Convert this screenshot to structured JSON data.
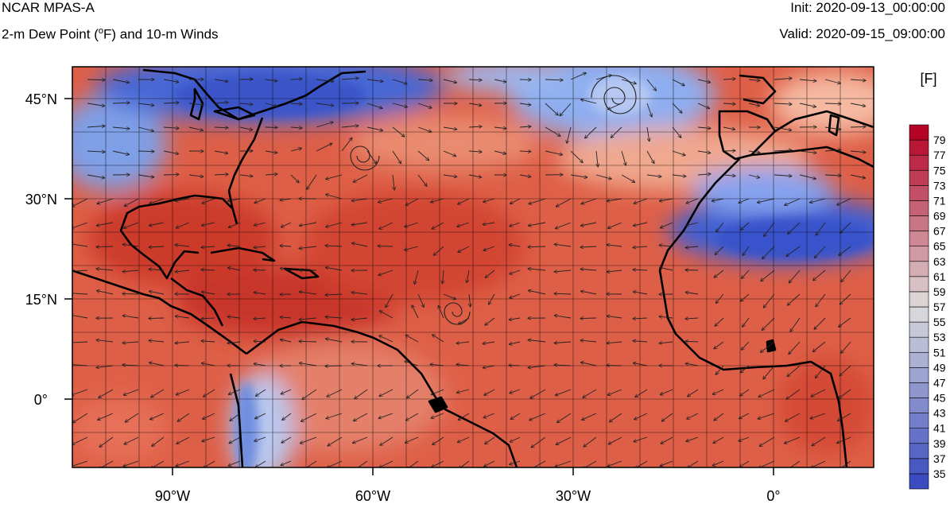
{
  "header": {
    "model": "NCAR MPAS-A",
    "field_prefix": "2-m Dew Point (",
    "field_sup": "o",
    "field_suffix": "F) and 10-m Winds",
    "init": "Init: 2020-09-13_00:00:00",
    "valid": "Valid: 2020-09-15_09:00:00"
  },
  "map": {
    "lon_labels": [
      "90°W",
      "60°W",
      "30°W",
      "0°"
    ],
    "lat_labels": [
      "45°N",
      "30°N",
      "15°N",
      "0°"
    ],
    "region": "North Atlantic"
  },
  "colorbar": {
    "units": "[F]",
    "levels": [
      35,
      37,
      39,
      41,
      43,
      45,
      47,
      49,
      51,
      53,
      55,
      57,
      59,
      61,
      63,
      65,
      67,
      69,
      71,
      73,
      75,
      77,
      79
    ],
    "low_color": "#3b4cc0",
    "high_color": "#b40426"
  },
  "colors": {
    "moist": "#dd5a43",
    "very_moist": "#c9302a",
    "dry": "#4a63d3",
    "neutral": "#e8d8d0",
    "coastline": "#000000",
    "wind_vector": "#222222"
  }
}
